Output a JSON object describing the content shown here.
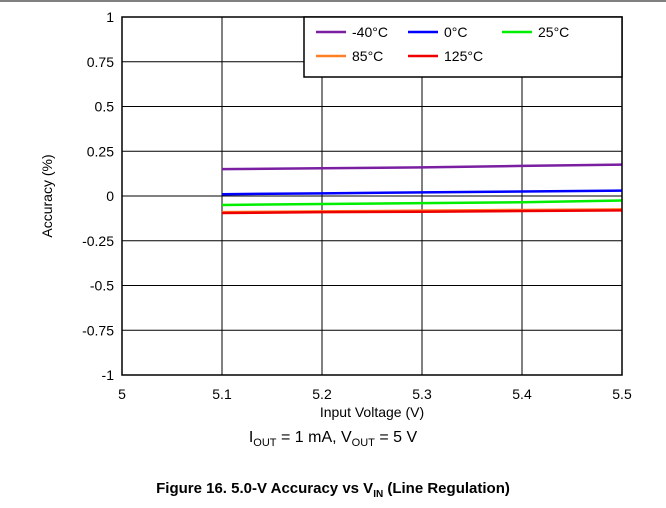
{
  "chart_data": {
    "type": "line",
    "xlabel": "Input Voltage (V)",
    "ylabel": "Accuracy (%)",
    "xlim": [
      5,
      5.5
    ],
    "ylim": [
      -1,
      1
    ],
    "x_ticks": [
      "5",
      "5.1",
      "5.2",
      "5.3",
      "5.4",
      "5.5"
    ],
    "y_ticks": [
      "1",
      "0.75",
      "0.5",
      "0.25",
      "0",
      "-0.25",
      "-0.5",
      "-0.75",
      "-1"
    ],
    "grid": true,
    "legend_position": "top-right",
    "x": [
      5.1,
      5.2,
      5.3,
      5.4,
      5.5
    ],
    "series": [
      {
        "name": "-40°C",
        "color": "#7a1fa2",
        "values": [
          0.15,
          0.155,
          0.16,
          0.168,
          0.175
        ]
      },
      {
        "name": "0°C",
        "color": "#0000ff",
        "values": [
          0.01,
          0.015,
          0.02,
          0.025,
          0.03
        ]
      },
      {
        "name": "25°C",
        "color": "#00ee00",
        "values": [
          -0.05,
          -0.045,
          -0.04,
          -0.035,
          -0.025
        ]
      },
      {
        "name": "85°C",
        "color": "#ff7f27",
        "values": [
          -0.09,
          -0.086,
          -0.082,
          -0.078,
          -0.075
        ]
      },
      {
        "name": "125°C",
        "color": "#ee0000",
        "values": [
          -0.095,
          -0.09,
          -0.088,
          -0.084,
          -0.08
        ]
      }
    ]
  },
  "conditions": {
    "i_symbol": "I",
    "i_sub": "OUT",
    "i_value": " = 1 mA, ",
    "v_symbol": "V",
    "v_sub": "OUT",
    "v_value": " = 5 V"
  },
  "caption": {
    "main": "Figure 16. 5.0-V Accuracy vs V",
    "sub": "IN",
    "tail": " (Line Regulation)"
  }
}
